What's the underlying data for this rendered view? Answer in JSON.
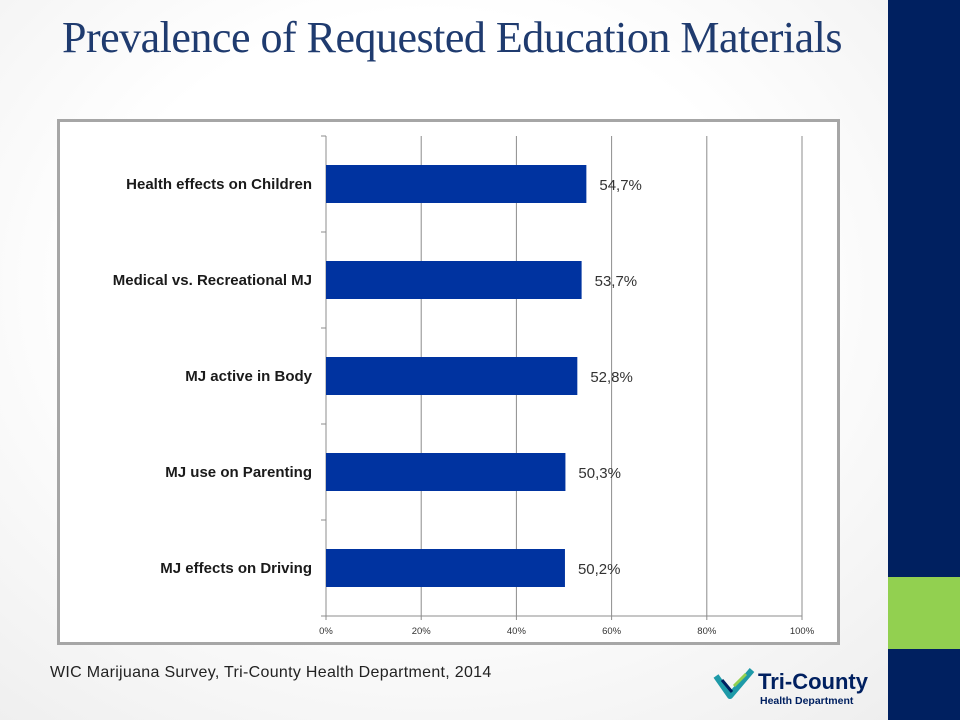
{
  "slide": {
    "title": "Prevalence of Requested Education Materials",
    "source": "WIC Marijuana Survey, Tri-County Health Department, 2014",
    "colors": {
      "sidebar": "#002060",
      "accent": "#92d050",
      "bar": "#0033a0"
    }
  },
  "logo": {
    "name": "Tri-County",
    "subtitle": "Health Department",
    "icon": "tri-county-check-icon"
  },
  "chart_data": {
    "type": "bar",
    "orientation": "horizontal",
    "categories": [
      "Health effects on Children",
      "Medical vs. Recreational MJ",
      "MJ active in Body",
      "MJ use on Parenting",
      "MJ effects on Driving"
    ],
    "values": [
      54.7,
      53.7,
      52.8,
      50.3,
      50.2
    ],
    "value_labels": [
      "54,7%",
      "53,7%",
      "52,8%",
      "50,3%",
      "50,2%"
    ],
    "xlim": [
      0,
      100
    ],
    "x_ticks": [
      "0%",
      "20%",
      "40%",
      "60%",
      "80%",
      "100%"
    ],
    "grid": true,
    "legend": false
  }
}
